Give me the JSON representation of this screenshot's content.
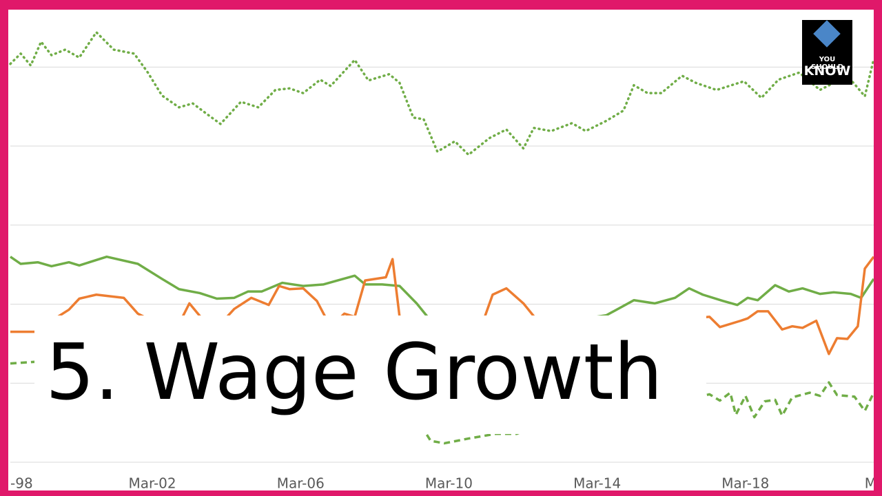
{
  "chart_data": {
    "type": "line",
    "xlim": [
      1998.17,
      2021.46
    ],
    "xticks": [
      {
        "value": 1998,
        "label": "-98"
      },
      {
        "value": 2002,
        "label": "Mar-02"
      },
      {
        "value": 2006,
        "label": "Mar-06"
      },
      {
        "value": 2010,
        "label": "Mar-10"
      },
      {
        "value": 2014,
        "label": "Mar-14"
      },
      {
        "value": 2018,
        "label": "Mar-18"
      },
      {
        "value": 2022,
        "label": "M"
      }
    ],
    "ylim": [
      0,
      5.7
    ],
    "yticks": [
      0,
      1,
      2,
      3,
      4,
      5
    ],
    "ytick_labels": false,
    "grid": true,
    "series": [
      {
        "color": "#70ad47",
        "dash": "dotted",
        "x": [
          1998.17,
          1998.45,
          1998.72,
          1999.0,
          1999.28,
          1999.65,
          2000.03,
          2000.49,
          2000.96,
          2001.51,
          2001.88,
          2002.26,
          2002.72,
          2003.09,
          2003.46,
          2003.84,
          2004.39,
          2004.86,
          2005.32,
          2005.7,
          2006.07,
          2006.53,
          2006.81,
          2007.46,
          2007.83,
          2008.39,
          2008.67,
          2009.04,
          2009.32,
          2009.69,
          2010.16,
          2010.53,
          2011.09,
          2011.55,
          2012.01,
          2012.29,
          2012.76,
          2013.32,
          2013.69,
          2014.25,
          2014.71,
          2014.99,
          2015.36,
          2015.73,
          2016.29,
          2016.66,
          2017.22,
          2017.96,
          2018.43,
          2018.89,
          2019.45,
          2020.01,
          2020.75,
          2021.22,
          2021.46
        ],
        "values": [
          5.04,
          5.17,
          5.02,
          5.32,
          5.15,
          5.22,
          5.12,
          5.44,
          5.22,
          5.17,
          4.93,
          4.64,
          4.49,
          4.54,
          4.41,
          4.28,
          4.56,
          4.49,
          4.71,
          4.73,
          4.67,
          4.84,
          4.76,
          5.09,
          4.83,
          4.91,
          4.8,
          4.36,
          4.34,
          3.93,
          4.06,
          3.89,
          4.1,
          4.21,
          3.97,
          4.23,
          4.19,
          4.29,
          4.19,
          4.32,
          4.45,
          4.77,
          4.67,
          4.67,
          4.89,
          4.8,
          4.71,
          4.82,
          4.61,
          4.84,
          4.93,
          4.71,
          4.89,
          4.63,
          5.1
        ]
      },
      {
        "color": "#70ad47",
        "dash": "solid",
        "x": [
          1998.17,
          1998.45,
          1998.91,
          1999.28,
          1999.75,
          2000.03,
          2000.77,
          2001.61,
          2002.26,
          2002.72,
          2003.28,
          2003.74,
          2004.21,
          2004.58,
          2004.95,
          2005.51,
          2006.07,
          2006.62,
          2007.0,
          2007.46,
          2007.74,
          2008.2,
          2008.67,
          2009.13,
          2009.51,
          2009.97,
          2010.9,
          2011.83,
          2012.76,
          2013.69,
          2014.25,
          2014.99,
          2015.55,
          2016.1,
          2016.48,
          2016.85,
          2017.4,
          2017.78,
          2018.06,
          2018.33,
          2018.8,
          2019.17,
          2019.54,
          2020.01,
          2020.38,
          2020.84,
          2021.12,
          2021.46
        ],
        "values": [
          2.6,
          2.51,
          2.53,
          2.48,
          2.53,
          2.49,
          2.6,
          2.51,
          2.32,
          2.19,
          2.14,
          2.07,
          2.08,
          2.16,
          2.16,
          2.27,
          2.23,
          2.25,
          2.3,
          2.36,
          2.25,
          2.25,
          2.23,
          2.01,
          1.79,
          1.75,
          1.71,
          1.68,
          1.75,
          1.82,
          1.86,
          2.05,
          2.01,
          2.08,
          2.2,
          2.12,
          2.04,
          1.99,
          2.08,
          2.05,
          2.24,
          2.16,
          2.2,
          2.13,
          2.15,
          2.13,
          2.08,
          2.32
        ]
      },
      {
        "color": "#ed7d31",
        "dash": "solid",
        "x": [
          1998.17,
          1998.82,
          1999.28,
          1999.75,
          2000.03,
          2000.49,
          2001.23,
          2001.61,
          2002.16,
          2002.72,
          2003.0,
          2003.46,
          2003.84,
          2004.21,
          2004.67,
          2005.14,
          2005.42,
          2005.7,
          2006.07,
          2006.44,
          2006.81,
          2007.18,
          2007.46,
          2007.74,
          2008.3,
          2008.48,
          2008.67,
          2009.04,
          2009.97,
          2010.9,
          2011.18,
          2011.55,
          2012.01,
          2012.39,
          2013.69,
          2014.62,
          2015.73,
          2016.48,
          2017.03,
          2017.31,
          2017.87,
          2018.06,
          2018.33,
          2018.61,
          2018.99,
          2019.26,
          2019.54,
          2019.91,
          2020.25,
          2020.47,
          2020.75,
          2021.03,
          2021.22,
          2021.46
        ],
        "values": [
          1.65,
          1.65,
          1.79,
          1.93,
          2.07,
          2.12,
          2.08,
          1.88,
          1.75,
          1.75,
          2.01,
          1.75,
          1.75,
          1.94,
          2.08,
          1.99,
          2.23,
          2.19,
          2.2,
          2.04,
          1.71,
          1.88,
          1.84,
          2.3,
          2.34,
          2.57,
          1.84,
          1.66,
          1.66,
          1.75,
          2.12,
          2.2,
          2.01,
          1.79,
          1.84,
          1.79,
          1.82,
          1.82,
          1.84,
          1.71,
          1.79,
          1.82,
          1.91,
          1.91,
          1.68,
          1.72,
          1.7,
          1.79,
          1.37,
          1.57,
          1.56,
          1.72,
          2.45,
          2.6
        ]
      },
      {
        "color": "#70ad47",
        "dash": "dashed",
        "x": [
          1998.17,
          1998.82,
          1999.75,
          2001.61,
          2003.46,
          2005.32,
          2007.18,
          2009.04,
          2009.51,
          2009.88,
          2010.53,
          2011.27,
          2011.83,
          2012.76,
          2014.62,
          2016.48,
          2017.03,
          2017.31,
          2017.59,
          2017.74,
          2018.0,
          2018.24,
          2018.52,
          2018.8,
          2018.99,
          2019.26,
          2019.73,
          2020.01,
          2020.25,
          2020.47,
          2020.94,
          2021.22,
          2021.46
        ],
        "values": [
          1.25,
          1.27,
          1.14,
          0.97,
          0.79,
          0.75,
          0.79,
          0.62,
          0.27,
          0.24,
          0.3,
          0.36,
          0.36,
          0.53,
          0.62,
          0.79,
          0.86,
          0.78,
          0.88,
          0.6,
          0.84,
          0.57,
          0.77,
          0.79,
          0.59,
          0.82,
          0.88,
          0.84,
          1.01,
          0.85,
          0.83,
          0.65,
          0.88
        ]
      }
    ]
  },
  "overlay": {
    "title": "5. Wage Growth"
  },
  "logo": {
    "line1": "YOU SHOULD",
    "line2": "KNOW"
  }
}
